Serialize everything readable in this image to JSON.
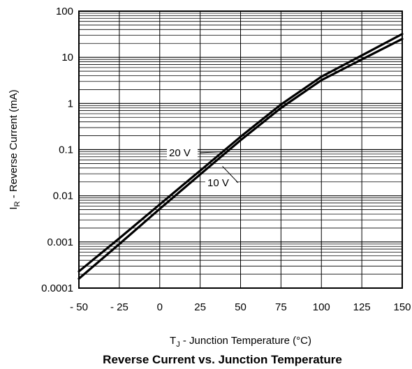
{
  "chart_data": {
    "type": "line",
    "title": "Reverse Current vs. Junction Temperature",
    "xlabel": {
      "main": "T",
      "sub": "J",
      "rest": " - Junction Temperature (°C)"
    },
    "ylabel": {
      "main": "I",
      "sub": "R",
      "rest": " - Reverse Current (mA)"
    },
    "x_scale": "linear",
    "y_scale": "log",
    "xlim": [
      -50,
      150
    ],
    "ylim": [
      0.0001,
      100
    ],
    "x_ticks": [
      -50,
      -25,
      0,
      25,
      50,
      75,
      100,
      125,
      150
    ],
    "x_tick_labels": [
      "- 50",
      "- 25",
      "0",
      "25",
      "50",
      "75",
      "100",
      "125",
      "150"
    ],
    "y_ticks": [
      0.0001,
      0.001,
      0.01,
      0.1,
      1,
      10,
      100
    ],
    "y_tick_labels": [
      "0.0001",
      "0.001",
      "0.01",
      "0.1",
      "1",
      "10",
      "100"
    ],
    "grid": true,
    "series": [
      {
        "name": "20 V",
        "x": [
          -50,
          -25,
          0,
          25,
          50,
          75,
          100,
          125,
          150
        ],
        "y": [
          0.00023,
          0.0012,
          0.0065,
          0.035,
          0.19,
          0.95,
          3.8,
          11,
          32
        ]
      },
      {
        "name": "10 V",
        "x": [
          -50,
          -25,
          0,
          25,
          50,
          75,
          100,
          125,
          150
        ],
        "y": [
          0.00016,
          0.0009,
          0.0052,
          0.029,
          0.16,
          0.8,
          3.2,
          9,
          25
        ]
      }
    ],
    "annotations": [
      {
        "text": "20 V",
        "series": "20 V"
      },
      {
        "text": "10 V",
        "series": "10 V"
      }
    ]
  }
}
